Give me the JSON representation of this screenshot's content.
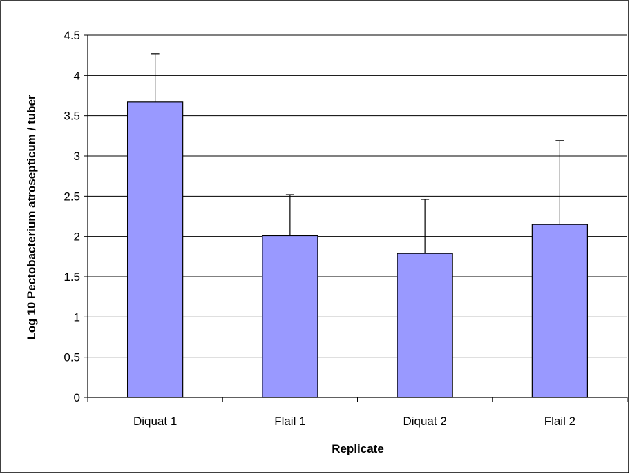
{
  "chart_data": {
    "type": "bar",
    "title": "",
    "xlabel": "Replicate",
    "ylabel": "Log 10 Pectobacterium atrosepticum / tuber",
    "categories": [
      "Diquat 1",
      "Flail 1",
      "Diquat 2",
      "Flail 2"
    ],
    "series": [
      {
        "values": [
          3.67,
          2.01,
          1.79,
          2.15
        ],
        "error_plus": [
          0.6,
          0.51,
          0.67,
          1.04
        ]
      }
    ],
    "ylim": [
      0,
      4.5
    ],
    "yticks": [
      0,
      0.5,
      1,
      1.5,
      2,
      2.5,
      3,
      3.5,
      4,
      4.5
    ],
    "ytick_labels": [
      "0",
      "0.5",
      "1",
      "1.5",
      "2",
      "2.5",
      "3",
      "3.5",
      "4",
      "4.5"
    ],
    "grid": true,
    "legend": "none",
    "bar_color": "#9999ff",
    "bar_edge_color": "#000000"
  }
}
